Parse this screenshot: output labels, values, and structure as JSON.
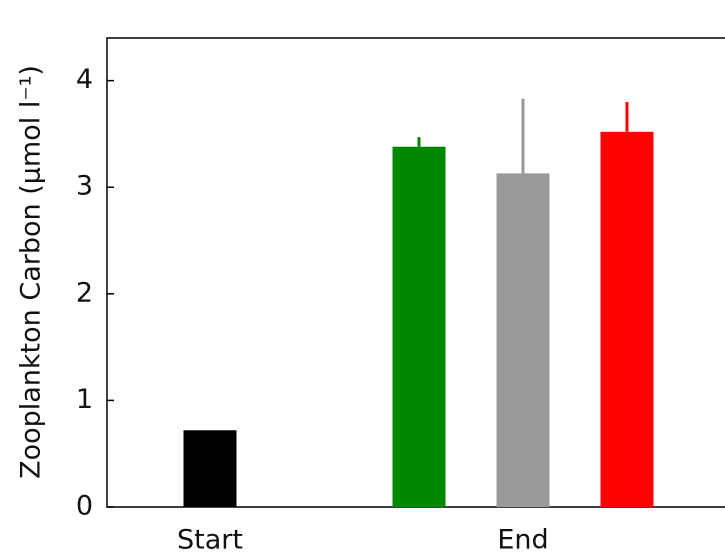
{
  "chart_data": {
    "type": "bar",
    "y_label": "Zooplankton Carbon (μmol l⁻¹)",
    "categories": [
      "Start",
      "End"
    ],
    "series": [
      {
        "color": "#000000",
        "values": [
          0.72,
          null
        ],
        "errors": [
          null,
          null
        ]
      },
      {
        "color": "#008800",
        "values": [
          null,
          3.38
        ],
        "errors": [
          null,
          0.09
        ]
      },
      {
        "color": "#999999",
        "values": [
          null,
          3.13
        ],
        "errors": [
          null,
          0.7
        ]
      },
      {
        "color": "#ff0000",
        "values": [
          null,
          3.52
        ],
        "errors": [
          null,
          0.28
        ]
      }
    ],
    "ylim": [
      0,
      4.4
    ],
    "yticks": [
      0,
      1,
      2,
      3,
      4
    ]
  }
}
